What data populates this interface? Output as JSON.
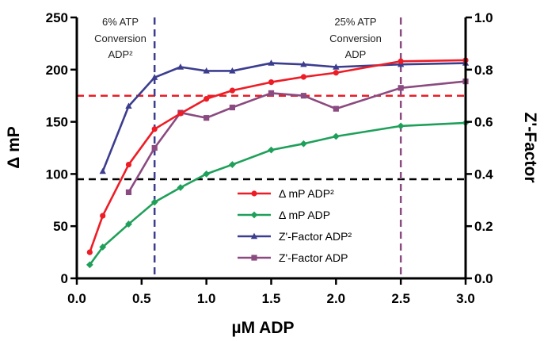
{
  "chart_data": {
    "type": "line",
    "xlabel": "µM ADP",
    "ylabel": "Δ mP",
    "ylabel_right": "Z'-Factor",
    "xlim": [
      0,
      3.0
    ],
    "ylim": [
      0,
      250
    ],
    "ylim_right": [
      0,
      1.0
    ],
    "x_ticks": [
      "0.0",
      "0.5",
      "1.0",
      "1.5",
      "2.0",
      "2.5",
      "3.0"
    ],
    "y_ticks": [
      "0",
      "50",
      "100",
      "150",
      "200",
      "250"
    ],
    "y_ticks_right": [
      "0.0",
      "0.2",
      "0.4",
      "0.6",
      "0.8",
      "1.0"
    ],
    "grid": false,
    "legend_position": "bottom-right",
    "series": [
      {
        "name": "Δ mP ADP²",
        "axis": "left",
        "color": "#ee1c25",
        "marker": "circle",
        "x": [
          0.1,
          0.2,
          0.4,
          0.6,
          0.8,
          1.0,
          1.2,
          1.5,
          1.75,
          2.0,
          2.5,
          3.0
        ],
        "y": [
          25,
          60,
          109,
          143,
          158,
          172,
          180,
          188,
          193,
          197,
          208,
          209
        ]
      },
      {
        "name": "Δ mP ADP",
        "axis": "left",
        "color": "#1fa05a",
        "marker": "diamond",
        "x": [
          0.1,
          0.2,
          0.4,
          0.6,
          0.8,
          1.0,
          1.2,
          1.5,
          1.75,
          2.0,
          2.5,
          3.0
        ],
        "y": [
          13,
          30,
          52,
          73,
          87,
          100,
          109,
          123,
          129,
          136,
          146,
          149
        ]
      },
      {
        "name": "Z'-Factor ADP²",
        "axis": "right",
        "color": "#3c3d8f",
        "marker": "triangle",
        "x": [
          0.2,
          0.4,
          0.6,
          0.8,
          1.0,
          1.2,
          1.5,
          1.75,
          2.0,
          2.5,
          3.0
        ],
        "y": [
          0.41,
          0.66,
          0.77,
          0.81,
          0.795,
          0.795,
          0.825,
          0.82,
          0.81,
          0.82,
          0.825
        ]
      },
      {
        "name": "Z'-Factor ADP",
        "axis": "right",
        "color": "#8b4a80",
        "marker": "square",
        "x": [
          0.4,
          0.6,
          0.8,
          1.0,
          1.2,
          1.5,
          1.75,
          2.0,
          2.5,
          3.0
        ],
        "y": [
          0.33,
          0.5,
          0.635,
          0.615,
          0.655,
          0.71,
          0.7,
          0.65,
          0.73,
          0.755
        ]
      }
    ],
    "reference_lines": [
      {
        "orientation": "horizontal",
        "axis": "left",
        "value": 175,
        "color": "#ee1c25",
        "style": "dashed"
      },
      {
        "orientation": "horizontal",
        "axis": "left",
        "value": 95,
        "color": "#000000",
        "style": "dashed"
      },
      {
        "orientation": "vertical",
        "value": 0.6,
        "color": "#3c3d8f",
        "style": "dashed"
      },
      {
        "orientation": "vertical",
        "value": 2.5,
        "color": "#8b4a80",
        "style": "dashed"
      }
    ],
    "annotations": [
      {
        "lines": [
          "6% ATP",
          "Conversion",
          "ADP²"
        ]
      },
      {
        "lines": [
          "25% ATP",
          "Conversion",
          "ADP"
        ]
      }
    ]
  }
}
